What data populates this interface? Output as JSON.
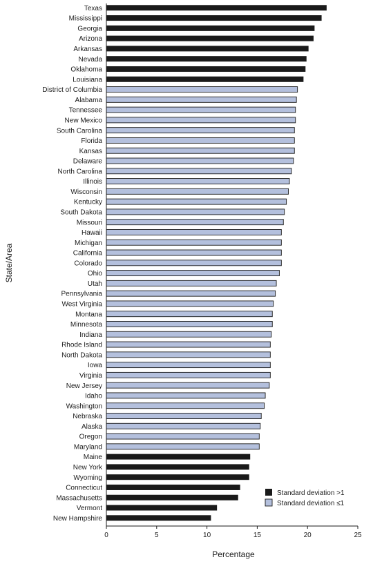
{
  "chart_data": {
    "type": "bar",
    "orientation": "horizontal",
    "xlabel": "Percentage",
    "ylabel": "State/Area",
    "xlim": [
      0,
      25
    ],
    "xticks": [
      0,
      5,
      10,
      15,
      20,
      25
    ],
    "grid": false,
    "legend_position": "bottom-right",
    "legend": [
      {
        "key": "high",
        "label": "Standard deviation >1",
        "color": "#1a1a1a"
      },
      {
        "key": "low",
        "label": "Standard deviation ≤1",
        "color": "#b4c0dd"
      }
    ],
    "bars": [
      {
        "category": "Texas",
        "value": 21.9,
        "group": "high"
      },
      {
        "category": "Mississippi",
        "value": 21.4,
        "group": "high"
      },
      {
        "category": "Georgia",
        "value": 20.7,
        "group": "high"
      },
      {
        "category": "Arizona",
        "value": 20.6,
        "group": "high"
      },
      {
        "category": "Arkansas",
        "value": 20.1,
        "group": "high"
      },
      {
        "category": "Nevada",
        "value": 19.9,
        "group": "high"
      },
      {
        "category": "Oklahoma",
        "value": 19.8,
        "group": "high"
      },
      {
        "category": "Louisiana",
        "value": 19.6,
        "group": "high"
      },
      {
        "category": "District of Columbia",
        "value": 19.0,
        "group": "low"
      },
      {
        "category": "Alabama",
        "value": 18.9,
        "group": "low"
      },
      {
        "category": "Tennessee",
        "value": 18.8,
        "group": "low"
      },
      {
        "category": "New Mexico",
        "value": 18.8,
        "group": "low"
      },
      {
        "category": "South Carolina",
        "value": 18.7,
        "group": "low"
      },
      {
        "category": "Florida",
        "value": 18.7,
        "group": "low"
      },
      {
        "category": "Kansas",
        "value": 18.7,
        "group": "low"
      },
      {
        "category": "Delaware",
        "value": 18.6,
        "group": "low"
      },
      {
        "category": "North Carolina",
        "value": 18.4,
        "group": "low"
      },
      {
        "category": "Illinois",
        "value": 18.2,
        "group": "low"
      },
      {
        "category": "Wisconsin",
        "value": 18.1,
        "group": "low"
      },
      {
        "category": "Kentucky",
        "value": 17.9,
        "group": "low"
      },
      {
        "category": "South Dakota",
        "value": 17.7,
        "group": "low"
      },
      {
        "category": "Missouri",
        "value": 17.6,
        "group": "low"
      },
      {
        "category": "Hawaii",
        "value": 17.4,
        "group": "low"
      },
      {
        "category": "Michigan",
        "value": 17.4,
        "group": "low"
      },
      {
        "category": "California",
        "value": 17.4,
        "group": "low"
      },
      {
        "category": "Colorado",
        "value": 17.4,
        "group": "low"
      },
      {
        "category": "Ohio",
        "value": 17.2,
        "group": "low"
      },
      {
        "category": "Utah",
        "value": 16.9,
        "group": "low"
      },
      {
        "category": "Pennsylvania",
        "value": 16.8,
        "group": "low"
      },
      {
        "category": "West Virginia",
        "value": 16.6,
        "group": "low"
      },
      {
        "category": "Montana",
        "value": 16.5,
        "group": "low"
      },
      {
        "category": "Minnesota",
        "value": 16.5,
        "group": "low"
      },
      {
        "category": "Indiana",
        "value": 16.4,
        "group": "low"
      },
      {
        "category": "Rhode Island",
        "value": 16.3,
        "group": "low"
      },
      {
        "category": "North Dakota",
        "value": 16.3,
        "group": "low"
      },
      {
        "category": "Iowa",
        "value": 16.3,
        "group": "low"
      },
      {
        "category": "Virginia",
        "value": 16.3,
        "group": "low"
      },
      {
        "category": "New Jersey",
        "value": 16.2,
        "group": "low"
      },
      {
        "category": "Idaho",
        "value": 15.8,
        "group": "low"
      },
      {
        "category": "Washington",
        "value": 15.7,
        "group": "low"
      },
      {
        "category": "Nebraska",
        "value": 15.4,
        "group": "low"
      },
      {
        "category": "Alaska",
        "value": 15.3,
        "group": "low"
      },
      {
        "category": "Oregon",
        "value": 15.2,
        "group": "low"
      },
      {
        "category": "Maryland",
        "value": 15.2,
        "group": "low"
      },
      {
        "category": "Maine",
        "value": 14.3,
        "group": "high"
      },
      {
        "category": "New York",
        "value": 14.2,
        "group": "high"
      },
      {
        "category": "Wyoming",
        "value": 14.2,
        "group": "high"
      },
      {
        "category": "Connecticut",
        "value": 13.3,
        "group": "high"
      },
      {
        "category": "Massachusetts",
        "value": 13.1,
        "group": "high"
      },
      {
        "category": "Vermont",
        "value": 11.0,
        "group": "high"
      },
      {
        "category": "New Hampshire",
        "value": 10.4,
        "group": "high"
      }
    ]
  }
}
